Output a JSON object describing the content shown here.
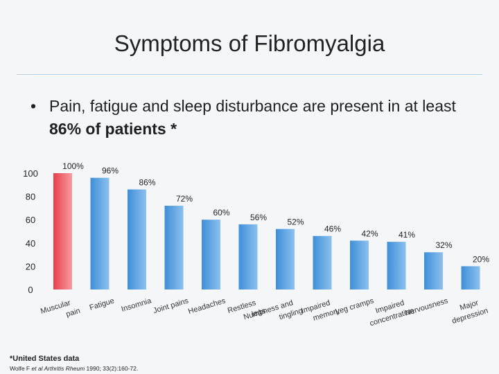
{
  "slide": {
    "title": "Symptoms of Fibromyalgia",
    "bullet_marker": "•",
    "bullet_text_before": "Pain, fatigue and sleep disturbance are present in at least ",
    "bullet_text_bold": "86% of patients *",
    "footnote": "*United States data",
    "citation_author": "Wolfe F ",
    "citation_journal": "et al Arthritis Rheum",
    "citation_rest": " 1990; 33(2):160-72."
  },
  "chart_data": {
    "type": "bar",
    "categories": [
      "Muscular pain",
      "Fatigue",
      "Insomnia",
      "Joint pains",
      "Headaches",
      "Restless legs",
      "Numbness and tingling",
      "Impaired memory",
      "Leg cramps",
      "Impaired concentration",
      "Nervousness",
      "Major depression"
    ],
    "values": [
      100,
      96,
      86,
      72,
      60,
      56,
      52,
      46,
      42,
      41,
      32,
      20
    ],
    "value_labels": [
      "100%",
      "96%",
      "86%",
      "72%",
      "60%",
      "56%",
      "52%",
      "46%",
      "42%",
      "41%",
      "32%",
      "20%"
    ],
    "ylim": [
      0,
      100
    ],
    "yticks": [
      0,
      20,
      40,
      60,
      80,
      100
    ],
    "ytick_labels": [
      "0",
      "20",
      "40",
      "60",
      "80",
      "100"
    ],
    "xlabel": "",
    "ylabel": "",
    "grid": false,
    "legend": "none",
    "colors": {
      "highlight": "#e8404a",
      "highlight_light": "#f79aa0",
      "bar": "#3f8fd8",
      "bar_light": "#8cc0ee"
    }
  }
}
